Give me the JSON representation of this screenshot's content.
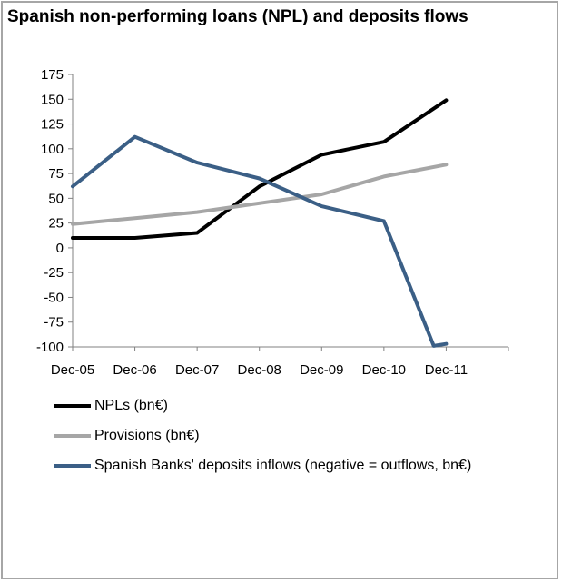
{
  "chart_data": {
    "type": "line",
    "title": "Spanish non-performing loans (NPL) and deposits flows",
    "categories": [
      "Dec-05",
      "Dec-06",
      "Dec-07",
      "Dec-08",
      "Dec-09",
      "Dec-10",
      "Dec-11"
    ],
    "ylim": [
      -100,
      175
    ],
    "yticks": [
      175,
      150,
      125,
      100,
      75,
      50,
      25,
      0,
      -25,
      -50,
      -75,
      -100
    ],
    "grid": false,
    "legend_position": "bottom",
    "series": [
      {
        "name": "NPLs (bn€)",
        "color": "#000000",
        "points": [
          [
            0,
            10
          ],
          [
            1,
            10
          ],
          [
            2,
            15
          ],
          [
            3,
            62
          ],
          [
            4,
            94
          ],
          [
            5,
            107
          ],
          [
            6,
            149
          ]
        ]
      },
      {
        "name": "Provisions (bn€)",
        "color": "#a6a6a6",
        "points": [
          [
            0,
            24
          ],
          [
            1,
            30
          ],
          [
            2,
            36
          ],
          [
            3,
            45
          ],
          [
            4,
            54
          ],
          [
            5,
            72
          ],
          [
            6,
            84
          ]
        ]
      },
      {
        "name": "Spanish Banks' deposits inflows (negative = outflows, bn€)",
        "color": "#3b5f86",
        "points": [
          [
            0,
            62
          ],
          [
            1,
            112
          ],
          [
            2,
            86
          ],
          [
            3,
            70
          ],
          [
            4,
            42
          ],
          [
            5,
            27
          ],
          [
            5.8,
            -99
          ],
          [
            6,
            -97
          ]
        ]
      }
    ]
  }
}
